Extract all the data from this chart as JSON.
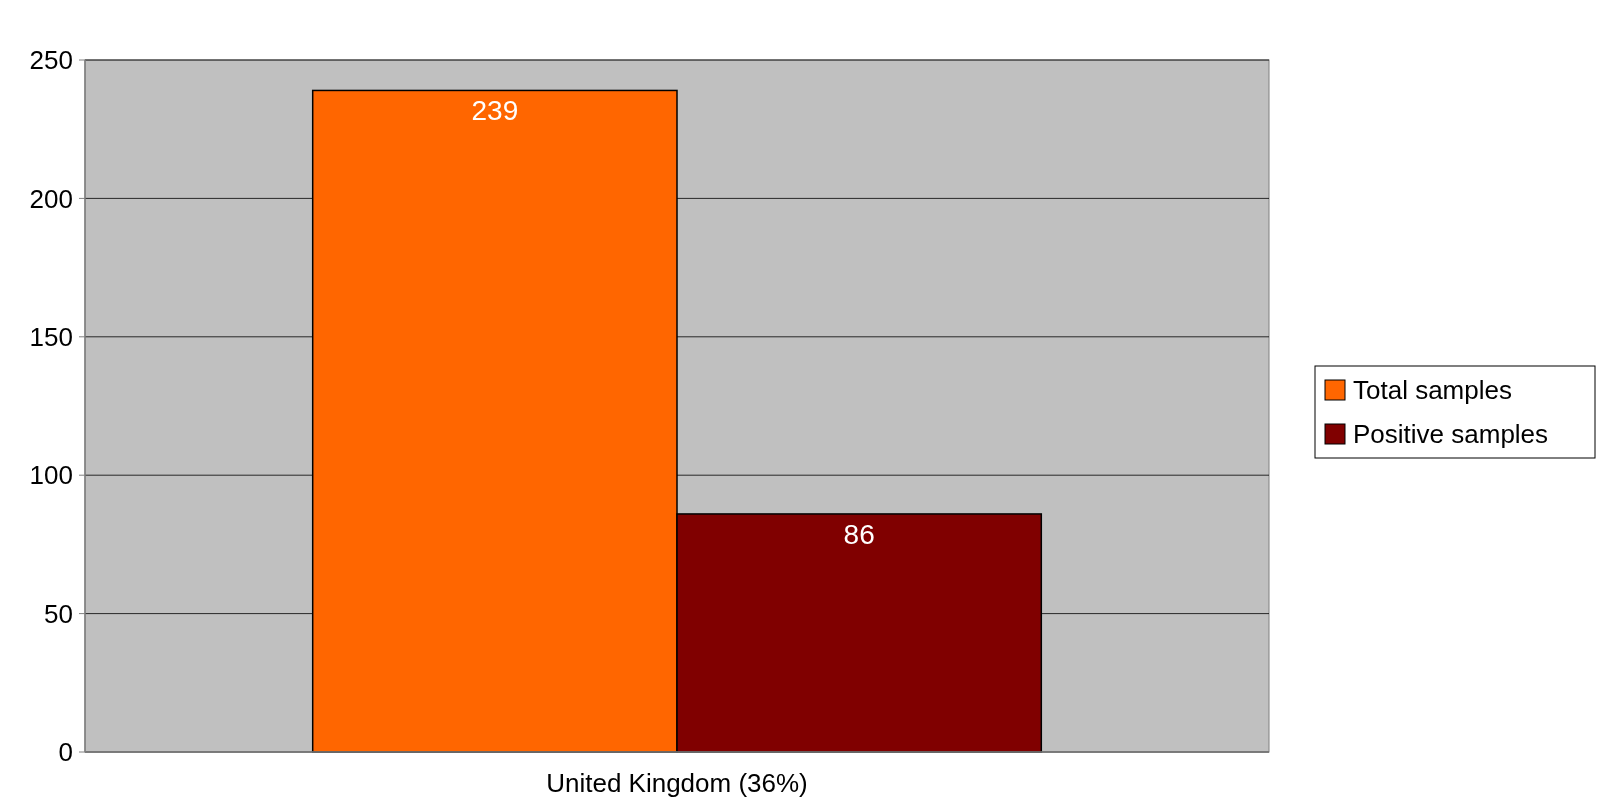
{
  "chart_data": {
    "type": "bar",
    "categories": [
      "United Kingdom (36%)"
    ],
    "series": [
      {
        "name": "Total samples",
        "color": "#ff6600",
        "values": [
          239
        ]
      },
      {
        "name": "Positive samples",
        "color": "#800000",
        "values": [
          86
        ]
      }
    ],
    "ylim": [
      0,
      250
    ],
    "yticks": [
      0,
      50,
      100,
      150,
      200,
      250
    ],
    "grid": "y",
    "legend": "right",
    "data_labels": true
  }
}
